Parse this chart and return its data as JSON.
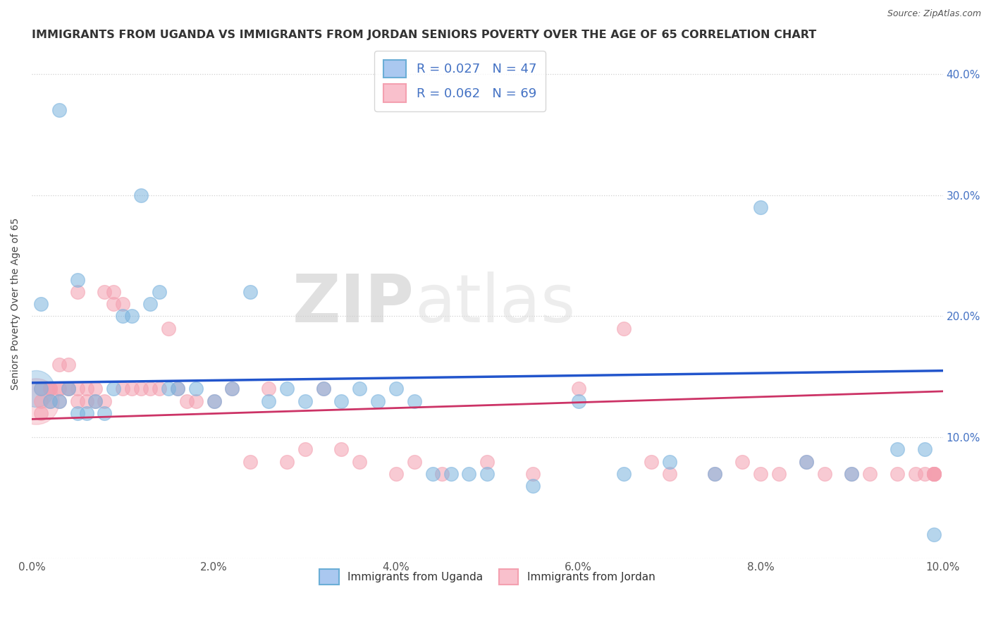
{
  "title": "IMMIGRANTS FROM UGANDA VS IMMIGRANTS FROM JORDAN SENIORS POVERTY OVER THE AGE OF 65 CORRELATION CHART",
  "source": "Source: ZipAtlas.com",
  "ylabel": "Seniors Poverty Over the Age of 65",
  "xlim": [
    0.0,
    0.1
  ],
  "ylim": [
    0.0,
    0.42
  ],
  "xticks": [
    0.0,
    0.02,
    0.04,
    0.06,
    0.08,
    0.1
  ],
  "xtick_labels": [
    "0.0%",
    "2.0%",
    "4.0%",
    "6.0%",
    "8.0%",
    "10.0%"
  ],
  "yticks": [
    0.0,
    0.1,
    0.2,
    0.3,
    0.4
  ],
  "ytick_labels": [
    "",
    "10.0%",
    "20.0%",
    "30.0%",
    "40.0%"
  ],
  "uganda_color": "#7ab3de",
  "jordan_color": "#f4a0b0",
  "legend_label1": "R = 0.027   N = 47",
  "legend_label2": "R = 0.062   N = 69",
  "legend_bottom1": "Immigrants from Uganda",
  "legend_bottom2": "Immigrants from Jordan",
  "watermark_zip": "ZIP",
  "watermark_atlas": "atlas",
  "uganda_R": 0.027,
  "uganda_N": 47,
  "jordan_R": 0.062,
  "jordan_N": 69,
  "uganda_x": [
    0.003,
    0.012,
    0.005,
    0.001,
    0.001,
    0.002,
    0.003,
    0.004,
    0.005,
    0.006,
    0.007,
    0.008,
    0.009,
    0.01,
    0.011,
    0.013,
    0.014,
    0.015,
    0.016,
    0.018,
    0.02,
    0.022,
    0.024,
    0.026,
    0.028,
    0.03,
    0.032,
    0.034,
    0.036,
    0.038,
    0.04,
    0.042,
    0.044,
    0.046,
    0.048,
    0.05,
    0.055,
    0.06,
    0.065,
    0.07,
    0.075,
    0.08,
    0.085,
    0.09,
    0.095,
    0.098,
    0.099
  ],
  "uganda_y": [
    0.37,
    0.3,
    0.23,
    0.21,
    0.14,
    0.13,
    0.13,
    0.14,
    0.12,
    0.12,
    0.13,
    0.12,
    0.14,
    0.2,
    0.2,
    0.21,
    0.22,
    0.14,
    0.14,
    0.14,
    0.13,
    0.14,
    0.22,
    0.13,
    0.14,
    0.13,
    0.14,
    0.13,
    0.14,
    0.13,
    0.14,
    0.13,
    0.07,
    0.07,
    0.07,
    0.07,
    0.06,
    0.13,
    0.07,
    0.08,
    0.07,
    0.29,
    0.08,
    0.07,
    0.09,
    0.09,
    0.02
  ],
  "jordan_x": [
    0.001,
    0.001,
    0.001,
    0.002,
    0.002,
    0.002,
    0.002,
    0.003,
    0.003,
    0.003,
    0.003,
    0.004,
    0.004,
    0.004,
    0.005,
    0.005,
    0.005,
    0.006,
    0.006,
    0.007,
    0.007,
    0.008,
    0.008,
    0.009,
    0.009,
    0.01,
    0.01,
    0.011,
    0.012,
    0.013,
    0.014,
    0.015,
    0.016,
    0.017,
    0.018,
    0.02,
    0.022,
    0.024,
    0.026,
    0.028,
    0.03,
    0.032,
    0.034,
    0.036,
    0.04,
    0.042,
    0.045,
    0.05,
    0.055,
    0.06,
    0.065,
    0.068,
    0.07,
    0.075,
    0.078,
    0.08,
    0.082,
    0.085,
    0.087,
    0.09,
    0.092,
    0.095,
    0.097,
    0.098,
    0.099,
    0.099,
    0.099,
    0.099,
    0.099
  ],
  "jordan_y": [
    0.14,
    0.13,
    0.12,
    0.14,
    0.14,
    0.13,
    0.14,
    0.14,
    0.16,
    0.13,
    0.14,
    0.16,
    0.14,
    0.14,
    0.14,
    0.22,
    0.13,
    0.14,
    0.13,
    0.13,
    0.14,
    0.22,
    0.13,
    0.21,
    0.22,
    0.14,
    0.21,
    0.14,
    0.14,
    0.14,
    0.14,
    0.19,
    0.14,
    0.13,
    0.13,
    0.13,
    0.14,
    0.08,
    0.14,
    0.08,
    0.09,
    0.14,
    0.09,
    0.08,
    0.07,
    0.08,
    0.07,
    0.08,
    0.07,
    0.14,
    0.19,
    0.08,
    0.07,
    0.07,
    0.08,
    0.07,
    0.07,
    0.08,
    0.07,
    0.07,
    0.07,
    0.07,
    0.07,
    0.07,
    0.07,
    0.07,
    0.07,
    0.07,
    0.07
  ],
  "background_color": "#ffffff",
  "grid_color": "#d0d0d0",
  "right_ytick_color": "#4472c4",
  "uganda_line_color": "#2255cc",
  "jordan_line_color": "#cc3366",
  "title_fontsize": 11.5,
  "source_fontsize": 9,
  "tick_fontsize": 11,
  "legend_fontsize": 13
}
